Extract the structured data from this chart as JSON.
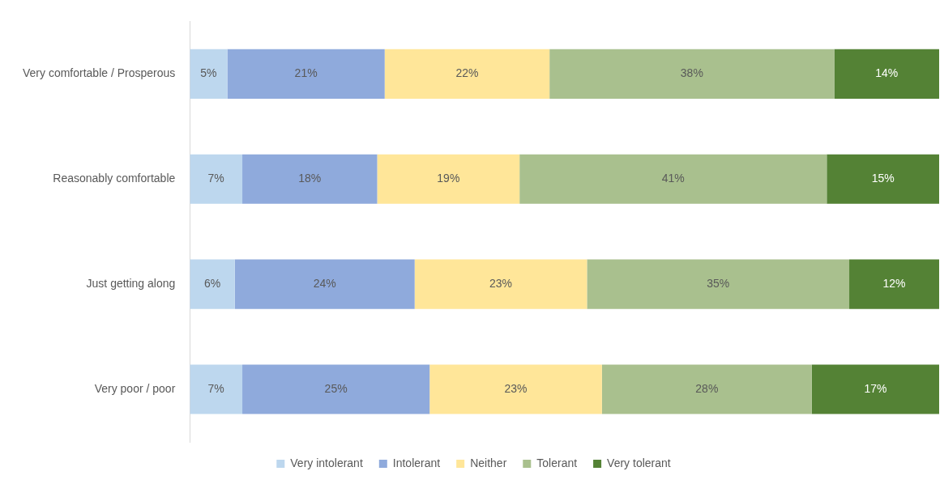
{
  "chart_data": {
    "type": "bar",
    "orientation": "horizontal",
    "stacked": true,
    "categories": [
      "Very comfortable / Prosperous",
      "Reasonably comfortable",
      "Just getting along",
      "Very poor / poor"
    ],
    "xlim": [
      0,
      100
    ],
    "tick_labels": "y",
    "grid": false,
    "legend": "bottom",
    "series": [
      {
        "name": "Very intolerant",
        "color": "#bdd7ee",
        "values": [
          5,
          7,
          6,
          7
        ],
        "value_labels": [
          "5%",
          "7%",
          "6%",
          "7%"
        ]
      },
      {
        "name": "Intolerant",
        "color": "#8faadc",
        "values": [
          21,
          18,
          24,
          25
        ],
        "value_labels": [
          "21%",
          "18%",
          "24%",
          "25%"
        ]
      },
      {
        "name": "Neither",
        "color": "#ffe699",
        "values": [
          22,
          19,
          23,
          23
        ],
        "value_labels": [
          "22%",
          "19%",
          "23%",
          "23%"
        ]
      },
      {
        "name": "Tolerant",
        "color": "#a9c08e",
        "values": [
          38,
          41,
          35,
          28
        ],
        "value_labels": [
          "38%",
          "41%",
          "35%",
          "28%"
        ]
      },
      {
        "name": "Very tolerant",
        "color": "#548235",
        "values": [
          14,
          15,
          12,
          17
        ],
        "value_labels": [
          "14%",
          "15%",
          "12%",
          "17%"
        ]
      }
    ]
  }
}
